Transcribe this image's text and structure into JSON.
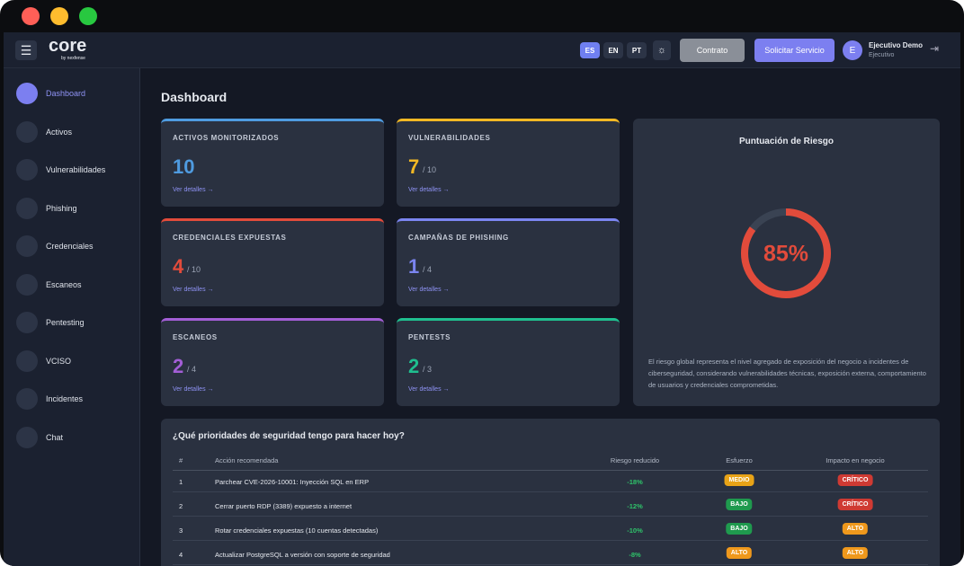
{
  "header": {
    "logo": "core",
    "logo_sub": "by nexfense",
    "languages": [
      "ES",
      "EN",
      "PT"
    ],
    "contract_button": "Contrato",
    "service_button": "Solicitar Servicio",
    "user_initial": "E",
    "user_name": "Ejecutivo Demo",
    "user_role": "Ejecutivo"
  },
  "sidebar": {
    "items": [
      "Dashboard",
      "Activos",
      "Vulnerabilidades",
      "Phishing",
      "Credenciales",
      "Escaneos",
      "Pentesting",
      "VCISO",
      "Incidentes",
      "Chat"
    ]
  },
  "page_title": "Dashboard",
  "cards": [
    {
      "title": "ACTIVOS MONITORIZADOS",
      "value": "10",
      "link": "Ver detalles →",
      "color": "#4f9be0"
    },
    {
      "title": "VULNERABILIDADES",
      "value": "7",
      "suffix": "/ 10",
      "link": "Ver detalles →",
      "color": "#f2b824"
    },
    {
      "title": "CREDENCIALES EXPUESTAS",
      "value": "4",
      "suffix": "/ 10",
      "link": "Ver detalles →",
      "color": "#e24b3b"
    },
    {
      "title": "CAMPAÑAS DE PHISHING",
      "value": "1",
      "suffix": "/ 4",
      "link": "Ver detalles →",
      "color": "#7b85f0"
    },
    {
      "title": "ESCANEOS",
      "value": "2",
      "suffix": "/ 4",
      "link": "Ver detalles →",
      "color": "#a35ed6"
    },
    {
      "title": "PENTESTS",
      "value": "2",
      "suffix": "/ 3",
      "link": "Ver detalles →",
      "color": "#1fbf8f"
    }
  ],
  "risk": {
    "title": "Puntuación de Riesgo",
    "value": 85,
    "value_label": "85%",
    "description": "El riesgo global representa el nivel agregado de exposición del negocio a incidentes de ciberseguridad, considerando vulnerabilidades técnicas, exposición externa, comportamiento de usuarios y credenciales comprometidas."
  },
  "priorities": {
    "title": "¿Qué prioridades de seguridad tengo para hacer hoy?",
    "columns": [
      "#",
      "Acción recomendada",
      "Riesgo reducido",
      "Esfuerzo",
      "Impacto en negocio"
    ],
    "rows": [
      [
        "1",
        "Parchear CVE-2026-10001: Inyección SQL en ERP",
        "-18%",
        "MEDIO",
        "CRÍTICO"
      ],
      [
        "2",
        "Cerrar puerto RDP (3389) expuesto a internet",
        "-12%",
        "BAJO",
        "CRÍTICO"
      ],
      [
        "3",
        "Rotar credenciales expuestas (10 cuentas detectadas)",
        "-10%",
        "BAJO",
        "ALTO"
      ],
      [
        "4",
        "Actualizar PostgreSQL a versión con soporte de seguridad",
        "-8%",
        "ALTO",
        "ALTO"
      ]
    ]
  }
}
